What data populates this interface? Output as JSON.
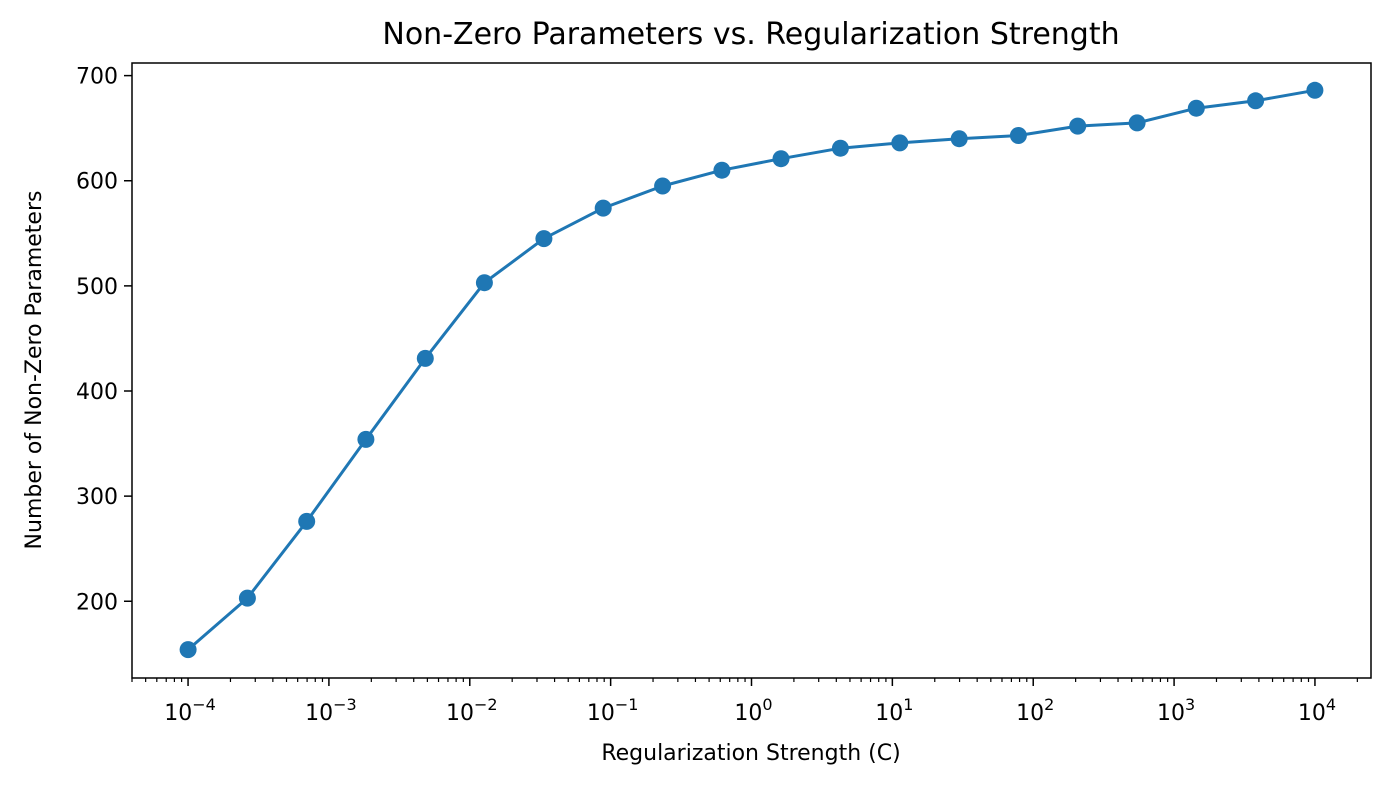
{
  "chart_data": {
    "type": "line",
    "title": "Non-Zero Parameters vs. Regularization Strength",
    "xlabel": "Regularization Strength (C)",
    "ylabel": "Number of Non-Zero Parameters",
    "x_scale": "log",
    "xlim": [
      4e-05,
      25000
    ],
    "ylim": [
      127,
      712
    ],
    "x_ticks": [
      {
        "value": 0.0001,
        "base": "10",
        "exp": "−4"
      },
      {
        "value": 0.001,
        "base": "10",
        "exp": "−3"
      },
      {
        "value": 0.01,
        "base": "10",
        "exp": "−2"
      },
      {
        "value": 0.1,
        "base": "10",
        "exp": "−1"
      },
      {
        "value": 1,
        "base": "10",
        "exp": "0"
      },
      {
        "value": 10,
        "base": "10",
        "exp": "1"
      },
      {
        "value": 100,
        "base": "10",
        "exp": "2"
      },
      {
        "value": 1000,
        "base": "10",
        "exp": "3"
      },
      {
        "value": 10000,
        "base": "10",
        "exp": "4"
      }
    ],
    "y_ticks": [
      200,
      300,
      400,
      500,
      600,
      700
    ],
    "grid": false,
    "color": "#1f77b4",
    "series": [
      {
        "x": [
          0.0001,
          0.000264,
          0.000695,
          0.00183,
          0.00483,
          0.0127,
          0.0336,
          0.0886,
          0.234,
          0.616,
          1.62,
          4.28,
          11.3,
          29.8,
          78.5,
          207,
          546,
          1438,
          3793,
          10000
        ],
        "y": [
          154,
          203,
          276,
          354,
          431,
          503,
          545,
          574,
          595,
          610,
          621,
          631,
          636,
          640,
          643,
          652,
          655,
          669,
          676,
          686
        ]
      }
    ]
  }
}
